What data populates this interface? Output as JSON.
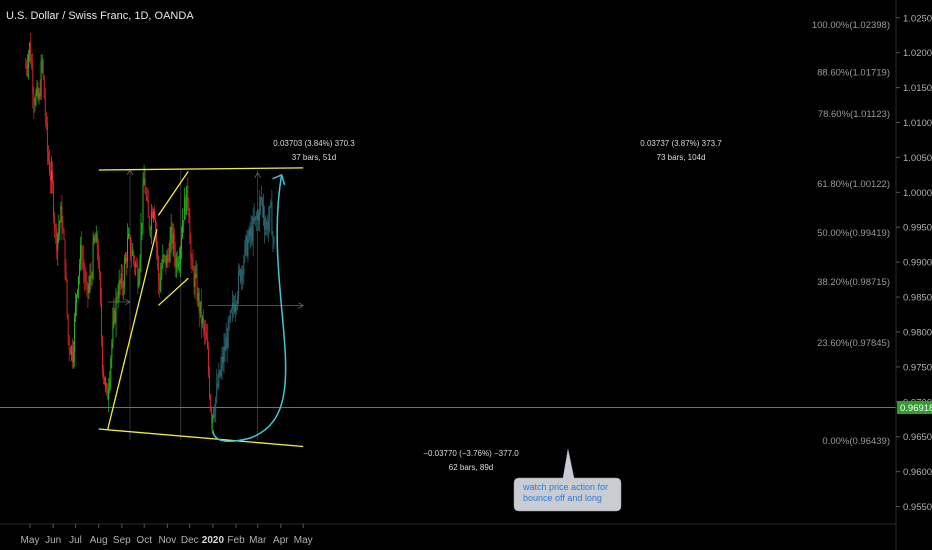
{
  "header": {
    "title": "U.S. Dollar / Swiss Franc, 1D, OANDA"
  },
  "colors": {
    "up": "#26c11e",
    "down": "#e0242a",
    "projection": "#2e6e78",
    "yellow": "#f2ee33",
    "cyan": "#3cc9d6",
    "green_line": "#2f9e2f",
    "note_bg": "#c9ccd3",
    "note_text": "#2f7bd6"
  },
  "price_axis": {
    "ticks": [
      "1.02500",
      "1.02000",
      "1.01500",
      "1.01000",
      "1.00500",
      "1.00000",
      "0.99500",
      "0.99000",
      "0.98500",
      "0.98000",
      "0.97500",
      "0.97000",
      "0.96500",
      "0.96000",
      "0.95500"
    ],
    "current_price": "0.96918"
  },
  "time_axis": [
    "May",
    "Jun",
    "Jul",
    "Aug",
    "Sep",
    "Oct",
    "Nov",
    "Dec",
    "2020",
    "Feb",
    "Mar",
    "Apr",
    "May"
  ],
  "fib_levels": [
    {
      "label": "100.00%(1.02398)",
      "price": 1.02398
    },
    {
      "label": "88.60%(1.01719)",
      "price": 1.01719
    },
    {
      "label": "78.60%(1.01123)",
      "price": 1.01123
    },
    {
      "label": "61.80%(1.00122)",
      "price": 1.00122
    },
    {
      "label": "50.00%(0.99419)",
      "price": 0.99419
    },
    {
      "label": "38.20%(0.98715)",
      "price": 0.98715
    },
    {
      "label": "23.60%(0.97845)",
      "price": 0.97845
    },
    {
      "label": "0.00%(0.96439)",
      "price": 0.96439
    }
  ],
  "measurements": [
    {
      "line1": "0.03703 (3.84%) 370.3",
      "line2": "37 bars, 51d"
    },
    {
      "line1": "0.03737 (3.87%) 373.7",
      "line2": "73 bars, 104d"
    },
    {
      "line1": "−0.03770 (−3.76%) −377.0",
      "line2": "62 bars, 89d"
    }
  ],
  "annotation": {
    "line1": "watch price action for",
    "line2": "bounce off and long"
  },
  "chart_data": {
    "type": "candlestick",
    "title": "U.S. Dollar / Swiss Franc, 1D, OANDA",
    "symbol": "USDCHF",
    "timeframe": "1D",
    "ylim": [
      0.9525,
      1.0275
    ],
    "x_range": [
      "2019-05",
      "2020-05"
    ],
    "close_path": [
      {
        "date": "2019-04-25",
        "close": 1.018
      },
      {
        "date": "2019-05-01",
        "close": 1.021
      },
      {
        "date": "2019-05-06",
        "close": 1.014
      },
      {
        "date": "2019-05-13",
        "close": 1.013
      },
      {
        "date": "2019-05-17",
        "close": 1.019
      },
      {
        "date": "2019-05-21",
        "close": 1.012
      },
      {
        "date": "2019-05-24",
        "close": 1.006
      },
      {
        "date": "2019-05-31",
        "close": 1.0005
      },
      {
        "date": "2019-06-05",
        "close": 0.993
      },
      {
        "date": "2019-06-12",
        "close": 0.997
      },
      {
        "date": "2019-06-17",
        "close": 0.99
      },
      {
        "date": "2019-06-21",
        "close": 0.979
      },
      {
        "date": "2019-06-27",
        "close": 0.977
      },
      {
        "date": "2019-07-03",
        "close": 0.987
      },
      {
        "date": "2019-07-09",
        "close": 0.992
      },
      {
        "date": "2019-07-16",
        "close": 0.985
      },
      {
        "date": "2019-07-22",
        "close": 0.988
      },
      {
        "date": "2019-07-26",
        "close": 0.993
      },
      {
        "date": "2019-07-31",
        "close": 0.992
      },
      {
        "date": "2019-08-06",
        "close": 0.976
      },
      {
        "date": "2019-08-12",
        "close": 0.97
      },
      {
        "date": "2019-08-19",
        "close": 0.979
      },
      {
        "date": "2019-08-26",
        "close": 0.986
      },
      {
        "date": "2019-09-02",
        "close": 0.987
      },
      {
        "date": "2019-09-09",
        "close": 0.993
      },
      {
        "date": "2019-09-16",
        "close": 0.991
      },
      {
        "date": "2019-09-23",
        "close": 0.988
      },
      {
        "date": "2019-10-01",
        "close": 1.002
      },
      {
        "date": "2019-10-07",
        "close": 0.995
      },
      {
        "date": "2019-10-14",
        "close": 0.999
      },
      {
        "date": "2019-10-21",
        "close": 0.986
      },
      {
        "date": "2019-10-25",
        "close": 0.99
      },
      {
        "date": "2019-10-31",
        "close": 0.99
      },
      {
        "date": "2019-11-07",
        "close": 0.994
      },
      {
        "date": "2019-11-12",
        "close": 0.99
      },
      {
        "date": "2019-11-18",
        "close": 0.992
      },
      {
        "date": "2019-11-22",
        "close": 0.997
      },
      {
        "date": "2019-11-29",
        "close": 1.0
      },
      {
        "date": "2019-12-03",
        "close": 0.989
      },
      {
        "date": "2019-12-09",
        "close": 0.987
      },
      {
        "date": "2019-12-13",
        "close": 0.984
      },
      {
        "date": "2019-12-18",
        "close": 0.981
      },
      {
        "date": "2019-12-24",
        "close": 0.978
      },
      {
        "date": "2019-12-30",
        "close": 0.968
      },
      {
        "date": "2020-01-02",
        "close": 0.969
      }
    ],
    "projection_path": [
      {
        "date": "2020-01-02",
        "close": 0.969
      },
      {
        "date": "2020-01-16",
        "close": 0.977
      },
      {
        "date": "2020-01-31",
        "close": 0.985
      },
      {
        "date": "2020-02-14",
        "close": 0.992
      },
      {
        "date": "2020-02-28",
        "close": 0.996
      },
      {
        "date": "2020-03-06",
        "close": 0.999
      },
      {
        "date": "2020-03-12",
        "close": 0.995
      },
      {
        "date": "2020-03-19",
        "close": 0.997
      },
      {
        "date": "2020-03-24",
        "close": 0.99
      }
    ],
    "trendlines": [
      {
        "from": {
          "date": "2019-08-01",
          "price": 1.0032
        },
        "to": {
          "date": "2020-05-01",
          "price": 1.0035
        }
      },
      {
        "from": {
          "date": "2019-08-01",
          "price": 0.9661
        },
        "to": {
          "date": "2020-05-01",
          "price": 0.9636
        }
      },
      {
        "from": {
          "date": "2019-08-13",
          "price": 0.966
        },
        "to": {
          "date": "2019-10-18",
          "price": 0.9947
        }
      },
      {
        "from": {
          "date": "2019-10-20",
          "price": 0.9967
        },
        "to": {
          "date": "2019-11-29",
          "price": 1.003
        }
      },
      {
        "from": {
          "date": "2019-10-20",
          "price": 0.9838
        },
        "to": {
          "date": "2019-11-29",
          "price": 0.9877
        }
      }
    ],
    "horizontal_arrows": [
      {
        "price": 0.9843,
        "from": "2019-08-13",
        "to": "2019-09-12"
      },
      {
        "price": 0.9838,
        "from": "2019-12-25",
        "to": "2020-05-01"
      }
    ],
    "projection_arc": {
      "start": {
        "date": "2020-01-01",
        "price": 0.9659
      },
      "low": {
        "date": "2020-01-24",
        "price": 0.9648
      },
      "end": {
        "date": "2020-04-02",
        "price": 1.0025
      }
    },
    "current_price": 0.96918
  }
}
